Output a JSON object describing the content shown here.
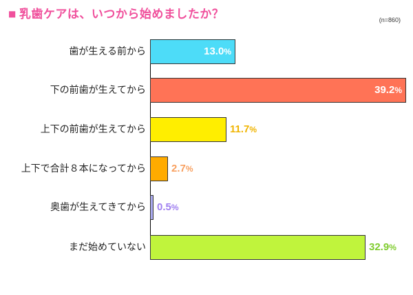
{
  "title": {
    "marker": "■",
    "text": "乳歯ケアは、いつから始めましたか？"
  },
  "sample_size": "(n=860)",
  "colors": {
    "title": "#f0509c"
  },
  "chart_data": {
    "type": "bar",
    "orientation": "horizontal",
    "title": "乳歯ケアは、いつから始めましたか？",
    "subtitle": "(n=860)",
    "xlabel": "",
    "ylabel": "",
    "unit": "%",
    "categories": [
      "歯が生える前から",
      "下の前歯が生えてから",
      "上下の前歯が生えてから",
      "上下で合計８本になってから",
      "奥歯が生えてきてから",
      "まだ始めていない"
    ],
    "values": [
      13.0,
      39.2,
      11.7,
      2.7,
      0.5,
      32.9
    ],
    "labels": [
      "13.0",
      "39.2",
      "11.7",
      "2.7",
      "0.5",
      "32.9"
    ],
    "bar_colors": [
      "#4ddcf8",
      "#ff7356",
      "#ffee00",
      "#ffab00",
      "#aaaaf0",
      "#c0f43c"
    ],
    "label_colors": [
      "#ffffff",
      "#ffffff",
      "#f0b400",
      "#f8a060",
      "#a080f0",
      "#80cc30"
    ],
    "label_inside": [
      true,
      true,
      false,
      false,
      false,
      false
    ],
    "grid": false,
    "legend": null
  }
}
